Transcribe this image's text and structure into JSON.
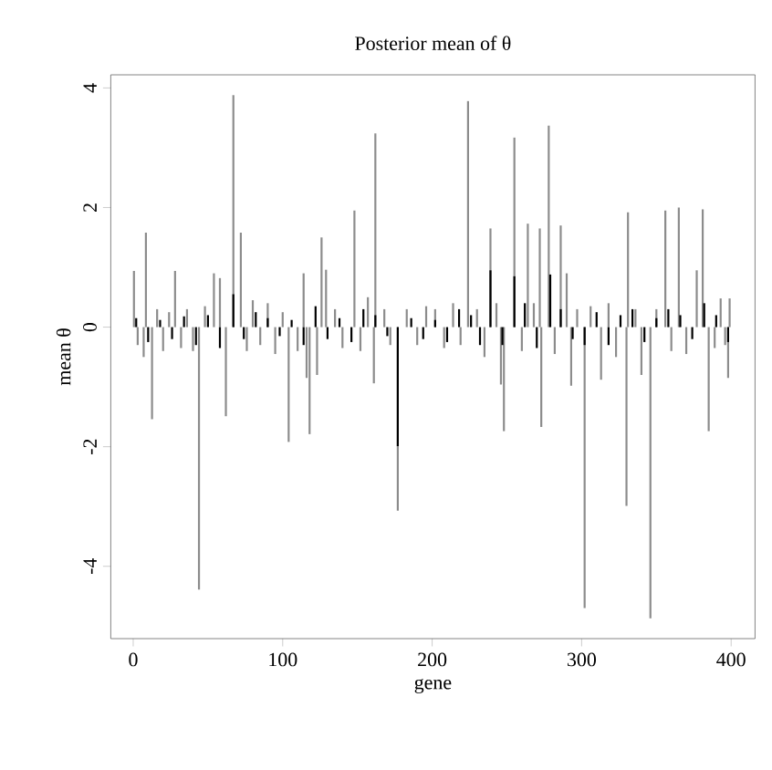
{
  "chart_data": {
    "type": "bar",
    "title": "Posterior mean of θ",
    "xlabel": "gene",
    "ylabel": "mean θ",
    "xlim": [
      -15,
      416
    ],
    "ylim": [
      -5.21,
      4.22
    ],
    "xticks": [
      0,
      100,
      200,
      300,
      400
    ],
    "yticks": [
      -4,
      -2,
      0,
      2,
      4
    ],
    "series": [
      {
        "color": "#8c8c8c",
        "x": [
          0.5,
          3,
          7,
          8.5,
          12.6,
          16,
          20,
          24,
          28,
          32,
          36,
          40,
          44,
          48,
          54,
          58,
          62,
          67,
          72,
          76,
          80,
          85,
          90,
          95,
          100,
          104,
          110,
          114,
          116,
          118,
          123,
          126,
          129,
          135,
          140,
          148,
          152,
          157,
          161,
          162,
          168,
          172,
          177,
          183,
          190,
          196,
          202,
          208,
          214,
          219,
          224,
          230,
          235,
          239,
          243,
          246,
          248,
          255,
          260,
          264,
          268,
          272,
          273,
          278,
          282,
          286,
          290,
          293,
          297,
          302,
          306,
          313,
          318,
          323,
          330,
          331,
          336,
          340,
          346,
          350,
          356,
          360,
          365,
          370,
          377,
          381,
          385,
          389,
          393,
          396,
          398,
          399
        ],
        "values": [
          0.94,
          -0.3,
          -0.5,
          1.58,
          -1.54,
          0.3,
          -0.4,
          0.25,
          0.94,
          -0.35,
          0.3,
          -0.4,
          -4.39,
          0.35,
          0.9,
          0.82,
          -1.49,
          3.88,
          1.58,
          -0.4,
          0.45,
          -0.3,
          0.4,
          -0.45,
          0.25,
          -1.92,
          -0.4,
          0.9,
          -0.85,
          -1.79,
          -0.8,
          1.5,
          0.96,
          0.3,
          -0.35,
          1.95,
          -0.4,
          0.5,
          -0.94,
          3.24,
          0.3,
          -0.3,
          -3.07,
          0.3,
          -0.3,
          0.35,
          0.3,
          -0.35,
          0.4,
          -0.3,
          3.78,
          0.3,
          -0.5,
          1.65,
          0.4,
          -0.96,
          -1.74,
          3.17,
          -0.4,
          1.73,
          0.4,
          1.65,
          -1.67,
          3.37,
          -0.45,
          1.7,
          0.9,
          -0.98,
          0.3,
          -4.7,
          0.35,
          -0.88,
          0.4,
          -0.5,
          -2.99,
          1.92,
          0.3,
          -0.8,
          -4.87,
          0.3,
          1.95,
          -0.4,
          2.0,
          -0.45,
          0.95,
          1.97,
          -1.74,
          -0.35,
          0.48,
          -0.3,
          -0.85,
          0.48
        ]
      },
      {
        "color": "#000000",
        "x": [
          2,
          10,
          18,
          26,
          34,
          42,
          50,
          58,
          67,
          74,
          82,
          90,
          98,
          106,
          114,
          122,
          130,
          138,
          146,
          154,
          162,
          170,
          177,
          186,
          194,
          202,
          210,
          218,
          226,
          232,
          239,
          247,
          255,
          262,
          270,
          279,
          286,
          294,
          302,
          310,
          318,
          326,
          334,
          342,
          350,
          358,
          366,
          374,
          382,
          390,
          398
        ],
        "values": [
          0.15,
          -0.25,
          0.12,
          -0.2,
          0.18,
          -0.3,
          0.2,
          -0.35,
          0.55,
          -0.2,
          0.25,
          0.15,
          -0.15,
          0.12,
          -0.3,
          0.35,
          -0.2,
          0.15,
          -0.25,
          0.3,
          0.2,
          -0.15,
          -1.99,
          0.15,
          -0.2,
          0.12,
          -0.25,
          0.3,
          0.2,
          -0.3,
          0.95,
          -0.3,
          0.85,
          0.4,
          -0.35,
          0.88,
          0.3,
          -0.2,
          -0.3,
          0.25,
          -0.3,
          0.2,
          0.3,
          -0.25,
          0.15,
          0.3,
          0.2,
          -0.2,
          0.4,
          0.2,
          -0.25
        ]
      }
    ]
  }
}
